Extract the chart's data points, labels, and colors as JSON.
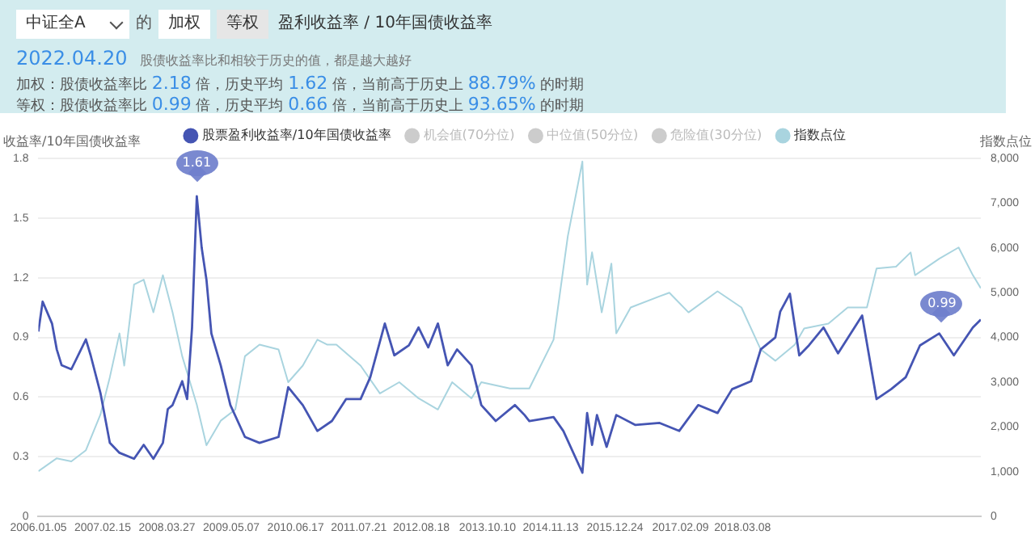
{
  "chart_data": {
    "type": "line",
    "title": "盈利收益率 / 10年国债收益率",
    "subtitle": "股债收益率比和相较于历史的值，都是越大越好",
    "ylabel": "收益率/10年国债收益率",
    "y2label": "指数点位",
    "annotations": [
      "中证全A",
      "的",
      "加权",
      "等权",
      "2022.04.20",
      "加权：股债收益率比 2.18 倍，历史平均 1.62 倍，当前高于历史上 88.79% 的时期",
      "等权：股债收益率比 0.99 倍，历史平均 0.66 倍，当前高于历史上 93.65% 的时期",
      {
        "text": "1.61",
        "x": "2008-10",
        "y": 1.61
      },
      {
        "text": "0.99",
        "x": "2022-04-20",
        "y": 0.99
      }
    ],
    "series": [
      {
        "name": "股票盈利收益率/10年国债收益率",
        "color": "#4555b3",
        "x": [
          "2006-01-05",
          "2006-02",
          "2006-04",
          "2006-05",
          "2006-06",
          "2006-08",
          "2006-11",
          "2006-12",
          "2007-02",
          "2007-04",
          "2007-06",
          "2007-09",
          "2007-11",
          "2008-01",
          "2008-03",
          "2008-04",
          "2008-05",
          "2008-07",
          "2008-08",
          "2008-09",
          "2008-10",
          "2008-11",
          "2008-12",
          "2009-01",
          "2009-03",
          "2009-05",
          "2009-08",
          "2009-11",
          "2010-03",
          "2010-05",
          "2010-08",
          "2010-11",
          "2011-02",
          "2011-05",
          "2011-08",
          "2011-10",
          "2012-01",
          "2012-03",
          "2012-06",
          "2012-08",
          "2012-10",
          "2012-12",
          "2013-02",
          "2013-04",
          "2013-07",
          "2013-09",
          "2013-12",
          "2014-04",
          "2014-06",
          "2014-07",
          "2014-12",
          "2015-02",
          "2015-06",
          "2015-07",
          "2015-08",
          "2015-09",
          "2015-11",
          "2016-01",
          "2016-05",
          "2016-10",
          "2017-02",
          "2017-06",
          "2017-10",
          "2018-01",
          "2018-05",
          "2018-07",
          "2018-10",
          "2018-11",
          "2019-01",
          "2019-03",
          "2019-05",
          "2019-08",
          "2019-11",
          "2020-04",
          "2020-07",
          "2020-10",
          "2021-01",
          "2021-04",
          "2021-08",
          "2021-11",
          "2022-03",
          "2022-04-20"
        ],
        "values": [
          0.93,
          1.08,
          0.97,
          0.84,
          0.76,
          0.74,
          0.89,
          0.81,
          0.62,
          0.37,
          0.32,
          0.29,
          0.36,
          0.29,
          0.37,
          0.54,
          0.56,
          0.68,
          0.59,
          0.95,
          1.61,
          1.35,
          1.19,
          0.92,
          0.76,
          0.56,
          0.4,
          0.37,
          0.4,
          0.65,
          0.56,
          0.43,
          0.48,
          0.59,
          0.59,
          0.7,
          0.97,
          0.81,
          0.86,
          0.95,
          0.85,
          0.97,
          0.76,
          0.84,
          0.76,
          0.56,
          0.48,
          0.56,
          0.51,
          0.48,
          0.5,
          0.43,
          0.22,
          0.52,
          0.36,
          0.51,
          0.35,
          0.51,
          0.46,
          0.47,
          0.43,
          0.56,
          0.52,
          0.64,
          0.68,
          0.84,
          0.9,
          1.03,
          1.12,
          0.81,
          0.86,
          0.95,
          0.82,
          1.01,
          0.59,
          0.64,
          0.7,
          0.86,
          0.92,
          0.81,
          0.95,
          0.99
        ]
      },
      {
        "name": "机会值(70分位)",
        "color": "#cccccc"
      },
      {
        "name": "中位值(50分位)",
        "color": "#cccccc"
      },
      {
        "name": "危险值(30分位)",
        "color": "#cccccc"
      },
      {
        "name": "指数点位",
        "color": "#a9d4df",
        "axis": "y2",
        "x": [
          "2006-01-05",
          "2006-05",
          "2006-08",
          "2006-11",
          "2007-02",
          "2007-04",
          "2007-06",
          "2007-07",
          "2007-09",
          "2007-11",
          "2008-01",
          "2008-03",
          "2008-05",
          "2008-07",
          "2008-10",
          "2008-12",
          "2009-03",
          "2009-06",
          "2009-08",
          "2009-11",
          "2010-03",
          "2010-05",
          "2010-08",
          "2010-11",
          "2011-01",
          "2011-03",
          "2011-08",
          "2011-12",
          "2012-04",
          "2012-08",
          "2012-12",
          "2013-03",
          "2013-07",
          "2013-09",
          "2014-03",
          "2014-06",
          "2014-07",
          "2014-12",
          "2015-03",
          "2015-06",
          "2015-07",
          "2015-08",
          "2015-10",
          "2015-12",
          "2016-01",
          "2016-04",
          "2016-10",
          "2016-12",
          "2017-04",
          "2017-10",
          "2018-03",
          "2018-07",
          "2018-10",
          "2019-02",
          "2019-04",
          "2019-09",
          "2020-01",
          "2020-05",
          "2020-07",
          "2020-11",
          "2021-02",
          "2021-03",
          "2021-08",
          "2021-12",
          "2022-03",
          "2022-04-20"
        ],
        "values": [
          1010,
          1300,
          1230,
          1480,
          2280,
          3110,
          4090,
          3370,
          5180,
          5290,
          4560,
          5390,
          4560,
          3580,
          2500,
          1590,
          2140,
          2390,
          3580,
          3840,
          3730,
          3000,
          3370,
          3950,
          3840,
          3840,
          3370,
          2750,
          3000,
          2640,
          2390,
          3000,
          2640,
          3000,
          2860,
          2860,
          2860,
          3950,
          6260,
          7930,
          5180,
          5900,
          4560,
          5650,
          4090,
          4670,
          4920,
          5000,
          4560,
          5030,
          4670,
          3730,
          3480,
          3840,
          4200,
          4310,
          4670,
          4670,
          5540,
          5580,
          5900,
          5390,
          5760,
          6010,
          5390,
          5100
        ]
      }
    ],
    "xlim": [
      "2006-01-05",
      "2022-04-20"
    ],
    "xticks": [
      {
        "value": "2006-01-05",
        "label": "2006.01.05"
      },
      {
        "value": "2007-02-15",
        "label": "2007.02.15"
      },
      {
        "value": "2008-03-27",
        "label": "2008.03.27"
      },
      {
        "value": "2009-05-07",
        "label": "2009.05.07"
      },
      {
        "value": "2010-06-17",
        "label": "2010.06.17"
      },
      {
        "value": "2011-07-21",
        "label": "2011.07.21"
      },
      {
        "value": "2012-08-18",
        "label": "2012.08.18"
      },
      {
        "value": "2013-10-10",
        "label": "2013.10.10"
      },
      {
        "value": "2014-11-13",
        "label": "2014.11.13"
      },
      {
        "value": "2015-12-24",
        "label": "2015.12.24"
      },
      {
        "value": "2017-02-09",
        "label": "2017.02.09"
      },
      {
        "value": "2018-03-08",
        "label": "2018.03.08"
      }
    ],
    "ylim": [
      0,
      1.8
    ],
    "yticks": [
      0,
      0.3,
      0.6,
      0.9,
      1.2,
      1.5,
      1.8
    ],
    "y2lim": [
      0,
      8000
    ],
    "y2ticks": [
      {
        "value": 0,
        "label": "0"
      },
      {
        "value": 1000,
        "label": "1,000"
      },
      {
        "value": 2000,
        "label": "2,000"
      },
      {
        "value": 3000,
        "label": "3,000"
      },
      {
        "value": 4000,
        "label": "4,000"
      },
      {
        "value": 5000,
        "label": "5,000"
      },
      {
        "value": 6000,
        "label": "6,000"
      },
      {
        "value": 7000,
        "label": "7,000"
      },
      {
        "value": 8000,
        "label": "8,000"
      }
    ],
    "grid": "y",
    "legend": "top",
    "marker": "none",
    "line_style": "solid"
  }
}
